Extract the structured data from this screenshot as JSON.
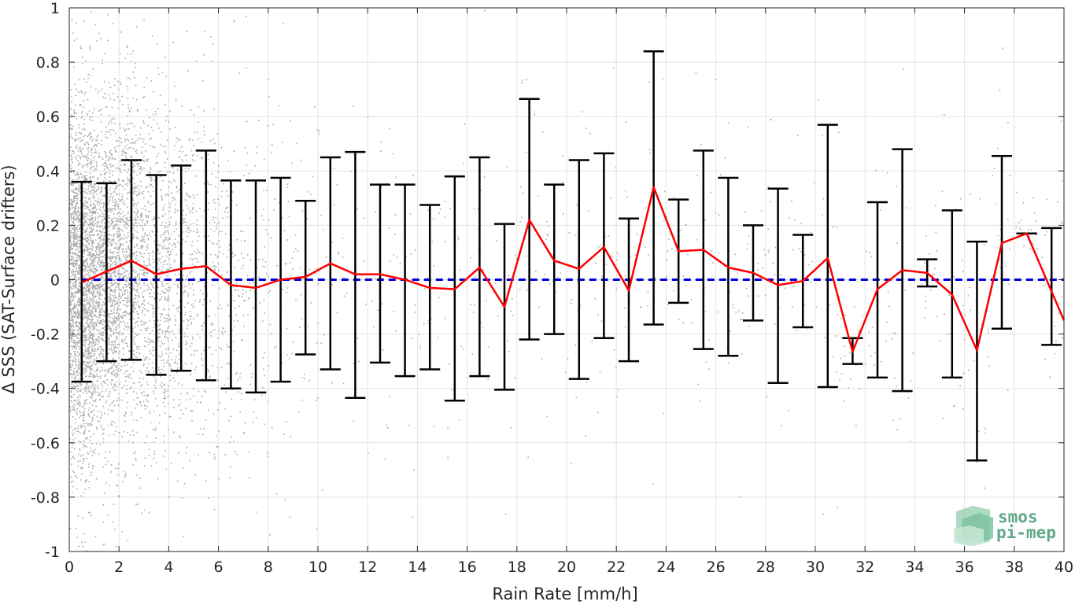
{
  "chart_data": {
    "type": "scatter",
    "xlabel": "Rain Rate [mm/h]",
    "ylabel": "Δ SSS (SAT-Surface drifters)",
    "xlim": [
      0,
      40
    ],
    "ylim": [
      -1,
      1
    ],
    "x_ticks": [
      0,
      2,
      4,
      6,
      8,
      10,
      12,
      14,
      16,
      18,
      20,
      22,
      24,
      26,
      28,
      30,
      32,
      34,
      36,
      38,
      40
    ],
    "y_ticks": [
      1,
      0.8,
      0.6,
      0.4,
      0.2,
      0,
      -0.2,
      -0.4,
      -0.6,
      -0.8,
      -1
    ],
    "y_tick_labels": [
      "1",
      "0.8",
      "0.6",
      "0.4",
      "0.2",
      "0",
      "-0.2",
      "-0.4",
      "-0.6",
      "-0.8",
      "-1"
    ],
    "grid": true,
    "scatter_color": "#8c8c8c",
    "mean_line_color": "#ff0000",
    "error_bar_color": "#000000",
    "reference_line": {
      "y": 0,
      "style": "dashed",
      "color": "#0000dd"
    },
    "bins": {
      "x": [
        0.5,
        1.5,
        2.5,
        3.5,
        4.5,
        5.5,
        6.5,
        7.5,
        8.5,
        9.5,
        10.5,
        11.5,
        12.5,
        13.5,
        14.5,
        15.5,
        16.5,
        17.5,
        18.5,
        19.5,
        20.5,
        21.5,
        22.5,
        23.5,
        24.5,
        25.5,
        26.5,
        27.5,
        28.5,
        29.5,
        30.5,
        31.5,
        32.5,
        33.5,
        34.5,
        35.5,
        36.5,
        37.5,
        38.5,
        39.5
      ],
      "mean": [
        -0.01,
        0.03,
        0.07,
        0.02,
        0.04,
        0.05,
        -0.02,
        -0.03,
        0.0,
        0.01,
        0.06,
        0.02,
        0.02,
        0.0,
        -0.03,
        -0.035,
        0.045,
        -0.1,
        0.22,
        0.07,
        0.04,
        0.12,
        -0.04,
        0.34,
        0.105,
        0.11,
        0.045,
        0.025,
        -0.02,
        -0.005,
        0.08,
        -0.265,
        -0.035,
        0.035,
        0.025,
        -0.055,
        -0.26,
        0.135,
        0.17,
        0.0
      ],
      "upper": [
        0.36,
        0.355,
        0.44,
        0.385,
        0.42,
        0.475,
        0.365,
        0.365,
        0.375,
        0.29,
        0.45,
        0.47,
        0.35,
        0.35,
        0.275,
        0.38,
        0.45,
        0.205,
        0.665,
        0.35,
        0.44,
        0.465,
        0.225,
        0.84,
        0.295,
        0.475,
        0.375,
        0.2,
        0.335,
        0.165,
        0.57,
        -0.215,
        0.285,
        0.48,
        0.075,
        0.255,
        0.14,
        0.455,
        0.17,
        0.19
      ],
      "lower": [
        -0.375,
        -0.3,
        -0.295,
        -0.35,
        -0.335,
        -0.37,
        -0.4,
        -0.415,
        -0.375,
        -0.275,
        -0.33,
        -0.435,
        -0.305,
        -0.355,
        -0.33,
        -0.445,
        -0.355,
        -0.405,
        -0.22,
        -0.2,
        -0.365,
        -0.215,
        -0.3,
        -0.165,
        -0.085,
        -0.255,
        -0.28,
        -0.15,
        -0.38,
        -0.175,
        -0.395,
        -0.31,
        -0.36,
        -0.41,
        -0.025,
        -0.36,
        -0.665,
        -0.18,
        0.17,
        -0.24
      ]
    },
    "mean_line_end": {
      "x": 40,
      "y": -0.15
    }
  },
  "logo": {
    "line1": "smos",
    "line2": "pi-mep",
    "color": "#5fa88a"
  }
}
